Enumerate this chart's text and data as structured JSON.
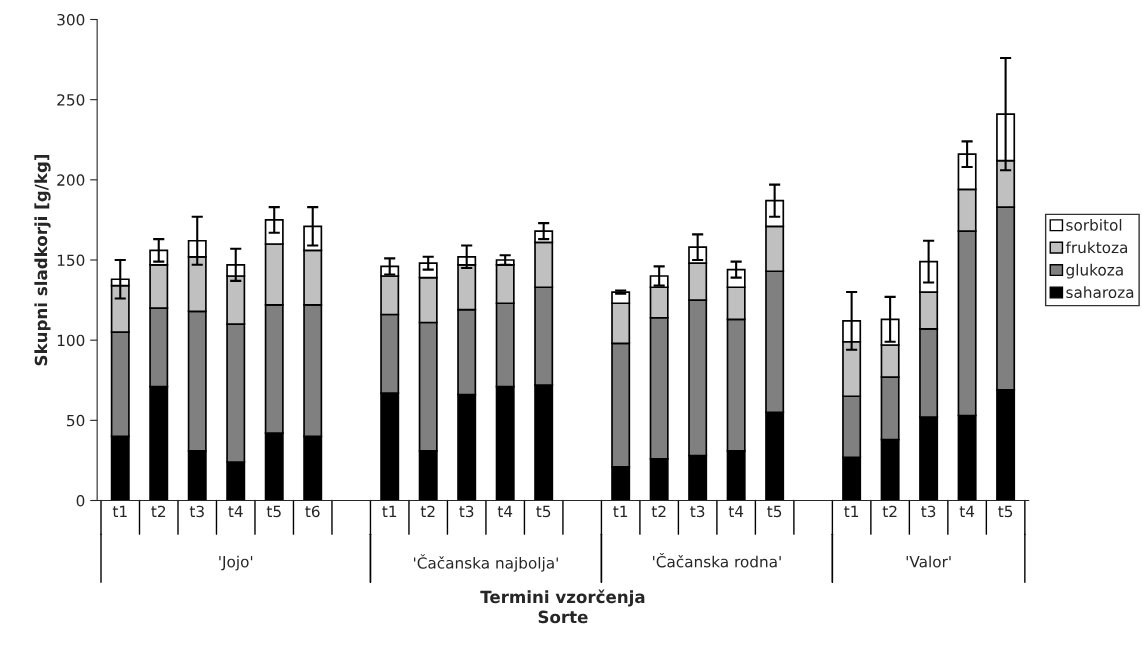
{
  "chart_data": {
    "type": "bar",
    "stacked": true,
    "categories": [
      "t1",
      "t2",
      "t3",
      "t4",
      "t5",
      "t6",
      null,
      "t1",
      "t2",
      "t3",
      "t4",
      "t5",
      null,
      "t1",
      "t2",
      "t3",
      "t4",
      "t5",
      null,
      "t1",
      "t2",
      "t3",
      "t4",
      "t5"
    ],
    "series": [
      {
        "name": "saharoza",
        "color": "#000000",
        "values": [
          40,
          71,
          31,
          24,
          42,
          40,
          null,
          67,
          31,
          66,
          71,
          72,
          null,
          21,
          26,
          28,
          31,
          55,
          null,
          27,
          38,
          52,
          53,
          69
        ]
      },
      {
        "name": "glukoza",
        "color": "#808080",
        "values": [
          65,
          49,
          87,
          86,
          80,
          82,
          null,
          49,
          80,
          53,
          52,
          61,
          null,
          77,
          88,
          97,
          82,
          88,
          null,
          38,
          39,
          55,
          115,
          114
        ]
      },
      {
        "name": "fruktoza",
        "color": "#c0c0c0",
        "values": [
          29,
          27,
          34,
          30,
          38,
          34,
          null,
          24,
          28,
          28,
          24,
          28,
          null,
          25,
          19,
          23,
          20,
          28,
          null,
          34,
          20,
          23,
          26,
          29
        ]
      },
      {
        "name": "sorbitol",
        "color": "#ffffff",
        "values": [
          4,
          9,
          10,
          7,
          15,
          15,
          null,
          6,
          9,
          5,
          3,
          7,
          null,
          7,
          7,
          10,
          11,
          16,
          null,
          13,
          16,
          19,
          22,
          29
        ],
        "errors": [
          12,
          7,
          15,
          10,
          8,
          12,
          null,
          5,
          4,
          7,
          3,
          5,
          null,
          1,
          6,
          8,
          5,
          10,
          null,
          18,
          14,
          13,
          8,
          35
        ]
      }
    ],
    "ylabel": "Skupni sladkorji [g/kg]",
    "xlabel": "Termini vzorčenja\nSorte",
    "annotations": [
      "'Jojo'",
      "'Čačanska najbolja'",
      "'Čačanska rodna'",
      "'Valor'"
    ],
    "ylim": [
      0,
      300
    ],
    "yticks": [
      0,
      50,
      100,
      150,
      200,
      250,
      300
    ],
    "grid": false,
    "legend": "right"
  }
}
